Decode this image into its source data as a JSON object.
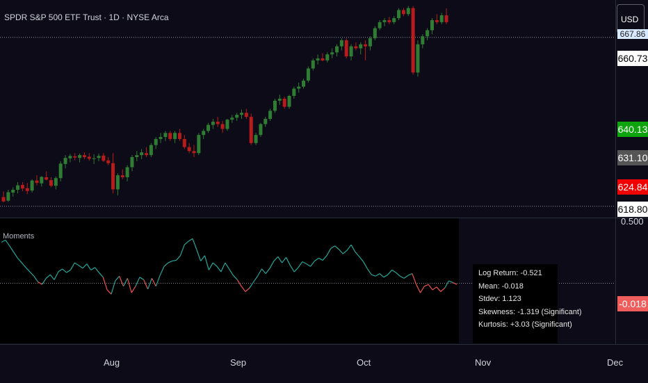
{
  "header": {
    "title": "SPDR S&P 500 ETF Trust · 1D · NYSE Arca",
    "currency_button": "USD"
  },
  "price_scale": {
    "hidden_top_label": "667.86",
    "labels": [
      {
        "text": "660.73",
        "bg": "#ffffff",
        "fg": "#000000"
      },
      {
        "text": "640.13",
        "bg": "#089981",
        "fg": "#ffffff",
        "color_override": "#0ea40e"
      },
      {
        "text": "631.10",
        "bg": "#555555",
        "fg": "#ffffff"
      },
      {
        "text": "624.84",
        "bg": "#f00000",
        "fg": "#ffffff"
      },
      {
        "text": "618.80",
        "bg": "#ffffff",
        "fg": "#000000"
      }
    ]
  },
  "indicator": {
    "name": "Moments",
    "scale_label": "0.500",
    "value_label": "-0.018",
    "value_bg": "#f05d5d",
    "stats": {
      "log_return": "Log Return: -0.521",
      "mean": "Mean: -0.018",
      "stdev": "Stdev: 1.123",
      "skewness": "Skewness: -1.319 (Significant)",
      "kurtosis": "Kurtosis: +3.03 (Significant)"
    }
  },
  "time_axis": {
    "months": [
      "Aug",
      "Sep",
      "Oct",
      "Nov",
      "Dec"
    ]
  },
  "colors": {
    "background": "#0c0b17",
    "up": "#2e7d32",
    "down": "#b71c1c",
    "indicator_up": "#26a69a",
    "indicator_down": "#ef5350"
  },
  "chart_data": [
    {
      "type": "candlestick",
      "title": "SPDR S&P 500 ETF Trust · 1D · NYSE Arca",
      "ylim": [
        616,
        670
      ],
      "candles": [
        [
          621.1,
          622.5,
          619.8,
          620.0
        ],
        [
          620.2,
          622.9,
          619.9,
          622.3
        ],
        [
          622.2,
          623.5,
          621.2,
          622.9
        ],
        [
          622.9,
          624.8,
          622.0,
          624.0
        ],
        [
          624.1,
          624.8,
          622.5,
          623.2
        ],
        [
          623.3,
          624.6,
          621.8,
          622.6
        ],
        [
          622.7,
          625.5,
          622.2,
          625.2
        ],
        [
          625.2,
          626.5,
          624.0,
          624.6
        ],
        [
          624.5,
          626.3,
          623.7,
          626.1
        ],
        [
          626.0,
          627.5,
          625.2,
          625.4
        ],
        [
          625.3,
          626.0,
          623.5,
          623.9
        ],
        [
          623.9,
          626.2,
          623.0,
          625.8
        ],
        [
          625.8,
          630.0,
          625.0,
          629.4
        ],
        [
          629.3,
          631.5,
          628.2,
          630.8
        ],
        [
          630.7,
          631.8,
          629.7,
          631.3
        ],
        [
          631.2,
          632.0,
          630.2,
          630.9
        ],
        [
          630.8,
          631.9,
          629.7,
          631.5
        ],
        [
          631.5,
          632.2,
          630.5,
          631.0
        ],
        [
          631.1,
          632.0,
          630.1,
          630.6
        ],
        [
          630.6,
          631.7,
          629.3,
          630.7
        ],
        [
          630.8,
          631.9,
          630.0,
          631.3
        ],
        [
          631.4,
          632.0,
          629.8,
          630.1
        ],
        [
          630.2,
          631.0,
          629.0,
          629.5
        ],
        [
          629.5,
          632.0,
          622.0,
          623.0
        ],
        [
          623.0,
          627.0,
          621.5,
          626.5
        ],
        [
          626.5,
          628.0,
          625.5,
          626.0
        ],
        [
          626.0,
          629.0,
          625.0,
          628.5
        ],
        [
          628.5,
          631.5,
          627.5,
          631.0
        ],
        [
          631.0,
          632.5,
          630.0,
          631.5
        ],
        [
          631.5,
          633.0,
          630.5,
          632.2
        ],
        [
          632.0,
          633.5,
          631.0,
          631.5
        ],
        [
          631.5,
          634.5,
          631.0,
          634.0
        ],
        [
          634.0,
          636.0,
          633.0,
          635.5
        ],
        [
          635.5,
          637.0,
          634.5,
          636.0
        ],
        [
          636.0,
          637.5,
          635.0,
          637.0
        ],
        [
          637.0,
          637.5,
          635.0,
          635.5
        ],
        [
          635.5,
          637.5,
          634.5,
          637.0
        ],
        [
          637.0,
          638.0,
          635.0,
          635.5
        ],
        [
          635.5,
          636.5,
          633.0,
          633.5
        ],
        [
          633.5,
          634.5,
          632.0,
          632.5
        ],
        [
          632.5,
          634.0,
          631.0,
          632.0
        ],
        [
          632.0,
          637.0,
          631.5,
          636.5
        ],
        [
          636.5,
          638.0,
          635.5,
          637.5
        ],
        [
          637.5,
          639.5,
          637.0,
          639.0
        ],
        [
          639.0,
          640.5,
          638.0,
          639.8
        ],
        [
          639.8,
          641.0,
          638.5,
          639.2
        ],
        [
          639.2,
          640.0,
          637.0,
          638.0
        ],
        [
          638.0,
          640.5,
          637.5,
          640.3
        ],
        [
          640.3,
          641.5,
          639.5,
          640.8
        ],
        [
          640.8,
          642.0,
          640.0,
          641.5
        ],
        [
          641.5,
          642.8,
          640.5,
          642.0
        ],
        [
          642.0,
          643.0,
          640.5,
          641.0
        ],
        [
          641.0,
          641.8,
          634.0,
          634.5
        ],
        [
          634.5,
          637.0,
          634.0,
          636.5
        ],
        [
          636.5,
          639.5,
          636.0,
          639.2
        ],
        [
          639.2,
          641.0,
          638.5,
          640.5
        ],
        [
          640.5,
          643.0,
          640.0,
          642.5
        ],
        [
          642.5,
          645.5,
          642.0,
          645.0
        ],
        [
          645.0,
          646.5,
          644.0,
          645.5
        ],
        [
          645.5,
          646.0,
          643.0,
          643.5
        ],
        [
          643.5,
          646.5,
          643.0,
          646.2
        ],
        [
          646.2,
          648.5,
          645.5,
          648.0
        ],
        [
          648.0,
          649.5,
          647.0,
          648.5
        ],
        [
          648.5,
          650.5,
          648.0,
          650.0
        ],
        [
          650.0,
          653.5,
          649.5,
          653.0
        ],
        [
          653.0,
          655.5,
          652.5,
          655.0
        ],
        [
          655.0,
          656.5,
          654.0,
          655.5
        ],
        [
          655.5,
          656.8,
          654.8,
          655.0
        ],
        [
          655.0,
          657.0,
          654.5,
          656.5
        ],
        [
          656.5,
          658.0,
          655.5,
          657.0
        ],
        [
          657.0,
          659.0,
          656.0,
          658.5
        ],
        [
          658.5,
          660.5,
          657.5,
          660.0
        ],
        [
          660.0,
          660.5,
          655.5,
          656.0
        ],
        [
          656.0,
          659.0,
          655.0,
          658.5
        ],
        [
          658.5,
          659.5,
          657.5,
          658.0
        ],
        [
          658.0,
          659.5,
          656.5,
          659.0
        ],
        [
          659.0,
          660.0,
          655.0,
          658.5
        ],
        [
          658.5,
          661.0,
          657.5,
          660.5
        ],
        [
          660.5,
          663.5,
          660.0,
          663.0
        ],
        [
          663.0,
          665.0,
          662.5,
          664.5
        ],
        [
          664.5,
          665.5,
          663.5,
          665.0
        ],
        [
          665.0,
          665.8,
          664.0,
          664.5
        ],
        [
          664.5,
          666.0,
          664.0,
          665.5
        ],
        [
          665.5,
          668.0,
          665.0,
          667.5
        ],
        [
          667.5,
          668.0,
          666.0,
          666.5
        ],
        [
          666.5,
          668.5,
          666.0,
          668.0
        ],
        [
          668.0,
          668.5,
          651.5,
          652.0
        ],
        [
          652.0,
          660.0,
          651.0,
          659.0
        ],
        [
          659.0,
          661.5,
          658.0,
          661.0
        ],
        [
          661.0,
          663.0,
          660.0,
          662.5
        ],
        [
          662.5,
          665.5,
          661.5,
          665.0
        ],
        [
          665.0,
          666.5,
          664.0,
          664.5
        ],
        [
          664.5,
          666.8,
          664.0,
          666.2
        ],
        [
          666.2,
          667.9,
          664.0,
          664.5
        ]
      ]
    },
    {
      "type": "line",
      "title": "Moments",
      "ylim": [
        -1.3,
        1.4
      ],
      "values": [
        1.12,
        1.18,
        1.02,
        0.85,
        0.68,
        0.55,
        0.42,
        0.3,
        0.18,
        0.02,
        -0.05,
        0.12,
        0.22,
        0.08,
        0.3,
        0.38,
        0.28,
        0.35,
        0.55,
        0.48,
        0.4,
        0.52,
        0.35,
        0.42,
        0.28,
        0.15,
        -0.2,
        -0.32,
        0.05,
        0.18,
        -0.1,
        0.12,
        -0.28,
        -0.1,
        0.15,
        0.08,
        -0.18,
        0.12,
        -0.1,
        0.2,
        0.45,
        0.55,
        0.6,
        0.62,
        0.75,
        1.05,
        1.15,
        1.22,
        0.92,
        0.6,
        0.75,
        0.35,
        0.55,
        0.45,
        0.3,
        0.55,
        0.38,
        0.2,
        0.08,
        -0.1,
        -0.25,
        -0.15,
        0.02,
        0.18,
        0.38,
        0.25,
        0.4,
        0.6,
        0.72,
        0.55,
        0.7,
        0.48,
        0.3,
        0.42,
        0.58,
        0.52,
        0.45,
        0.6,
        0.68,
        0.62,
        0.75,
        0.95,
        1.02,
        0.92,
        0.8,
        0.9,
        1.05,
        0.85,
        0.72,
        0.58,
        0.38,
        0.22,
        0.18,
        0.25,
        0.15,
        0.22,
        0.35,
        0.28,
        0.18,
        0.12,
        0.2,
        0.25,
        -0.05,
        -0.28,
        -0.1,
        -0.05,
        -0.2,
        -0.12,
        -0.25,
        -0.15,
        0.05,
        0.0,
        -0.05
      ]
    }
  ]
}
